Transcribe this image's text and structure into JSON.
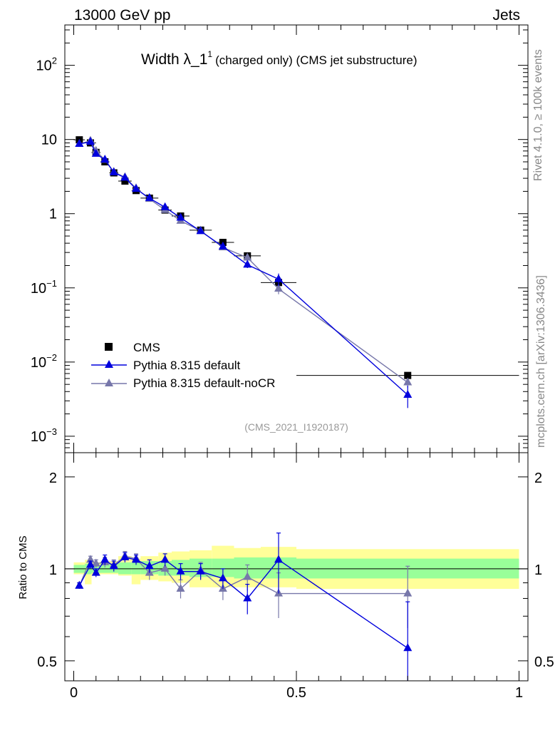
{
  "header": {
    "left": "13000 GeV pp",
    "right": "Jets"
  },
  "side_labels": {
    "rivet": "Rivet 4.1.0, ≥ 100k events",
    "mcplots": "mcplots.cern.ch [arXiv:1306.3436]"
  },
  "chart_data": [
    {
      "type": "scatter",
      "panel": "main",
      "title": "Width λ_1¹ (charged only) (CMS jet substructure)",
      "title_main": "Width λ_1",
      "title_sup": "1",
      "title_sub": "(charged only) (CMS jet substructure)",
      "analysis_label": "(CMS_2021_I1920187)",
      "yscale": "log",
      "ylim": [
        0.0006,
        350
      ],
      "xlim": [
        -0.02,
        1.02
      ],
      "ytick_labels": [
        {
          "value": 0.001,
          "base": "10",
          "exp": "−3"
        },
        {
          "value": 0.01,
          "base": "10",
          "exp": "−2"
        },
        {
          "value": 0.1,
          "base": "10",
          "exp": "−1"
        },
        {
          "value": 1,
          "base": "1",
          "exp": ""
        },
        {
          "value": 10,
          "base": "10",
          "exp": ""
        },
        {
          "value": 100,
          "base": "10",
          "exp": "2"
        }
      ],
      "legend": {
        "position": "lower-left",
        "entries": [
          "CMS",
          "Pythia 8.315 default",
          "Pythia 8.315 default-noCR"
        ]
      },
      "series": [
        {
          "name": "CMS",
          "color": "#000000",
          "marker": "square",
          "x": [
            0.0125,
            0.0375,
            0.05,
            0.07,
            0.09,
            0.115,
            0.14,
            0.17,
            0.205,
            0.24,
            0.285,
            0.335,
            0.39,
            0.46,
            0.75
          ],
          "y": [
            9.9,
            9.0,
            6.7,
            5.0,
            3.55,
            2.75,
            2.05,
            1.62,
            1.12,
            0.93,
            0.6,
            0.41,
            0.27,
            0.118,
            0.0066
          ],
          "xerr": [
            0.0125,
            0.0125,
            0.01,
            0.01,
            0.01,
            0.015,
            0.01,
            0.02,
            0.015,
            0.02,
            0.025,
            0.025,
            0.03,
            0.04,
            0.25
          ]
        },
        {
          "name": "Pythia 8.315 default",
          "color": "#0000dd",
          "marker": "triangle",
          "x": [
            0.0125,
            0.0375,
            0.05,
            0.07,
            0.09,
            0.115,
            0.14,
            0.17,
            0.205,
            0.24,
            0.285,
            0.335,
            0.39,
            0.46,
            0.75
          ],
          "y": [
            8.7,
            9.3,
            6.4,
            5.35,
            3.6,
            3.05,
            2.15,
            1.62,
            1.22,
            0.88,
            0.58,
            0.36,
            0.205,
            0.131,
            0.0036
          ],
          "yerr": [
            0.1,
            0.1,
            0.1,
            0.1,
            0.06,
            0.05,
            0.05,
            0.04,
            0.03,
            0.03,
            0.02,
            0.015,
            0.02,
            0.025,
            0.0012
          ]
        },
        {
          "name": "Pythia 8.315 default-noCR",
          "color": "#7777aa",
          "marker": "triangle",
          "x": [
            0.0125,
            0.0375,
            0.05,
            0.07,
            0.09,
            0.115,
            0.14,
            0.17,
            0.205,
            0.24,
            0.285,
            0.335,
            0.39,
            0.46,
            0.75
          ],
          "y": [
            8.7,
            9.6,
            7.0,
            5.3,
            3.65,
            3.1,
            2.2,
            1.58,
            1.12,
            0.8,
            0.59,
            0.35,
            0.255,
            0.097,
            0.0053
          ],
          "yerr": [
            0.1,
            0.1,
            0.1,
            0.1,
            0.06,
            0.05,
            0.05,
            0.04,
            0.03,
            0.03,
            0.02,
            0.015,
            0.02,
            0.015,
            0.0008
          ]
        }
      ]
    },
    {
      "type": "scatter",
      "panel": "ratio",
      "ylabel": "Ratio to CMS",
      "yscale": "log",
      "ylim": [
        0.43,
        2.4
      ],
      "xlim": [
        -0.02,
        1.02
      ],
      "yticks": [
        0.5,
        1,
        2
      ],
      "ytick_labels": [
        "0.5",
        "1",
        "2"
      ],
      "xticks": [
        0,
        0.5,
        1
      ],
      "xtick_labels": [
        "0",
        "0.5",
        "1"
      ],
      "bands": {
        "edges": [
          0,
          0.025,
          0.04,
          0.06,
          0.08,
          0.1,
          0.13,
          0.15,
          0.19,
          0.22,
          0.26,
          0.31,
          0.36,
          0.42,
          0.5,
          1.0
        ],
        "stat_lo": [
          0.97,
          0.96,
          0.97,
          0.97,
          0.97,
          0.96,
          0.96,
          0.96,
          0.95,
          0.95,
          0.94,
          0.94,
          0.93,
          0.93,
          0.93
        ],
        "stat_hi": [
          1.03,
          1.04,
          1.03,
          1.04,
          1.04,
          1.05,
          1.05,
          1.06,
          1.06,
          1.07,
          1.08,
          1.08,
          1.09,
          1.09,
          1.08
        ],
        "tot_lo": [
          0.96,
          0.89,
          0.95,
          0.96,
          0.96,
          0.95,
          0.89,
          0.92,
          0.91,
          0.9,
          0.87,
          0.87,
          0.87,
          0.87,
          0.86
        ],
        "tot_hi": [
          1.05,
          1.07,
          1.05,
          1.06,
          1.06,
          1.1,
          1.08,
          1.1,
          1.13,
          1.14,
          1.15,
          1.19,
          1.17,
          1.18,
          1.16
        ],
        "stat_color": "#99ff99",
        "total_color": "#ffff99"
      },
      "series": [
        {
          "name": "Pythia 8.315 default",
          "color": "#0000dd",
          "x": [
            0.0125,
            0.0375,
            0.05,
            0.07,
            0.09,
            0.115,
            0.14,
            0.17,
            0.205,
            0.24,
            0.285,
            0.335,
            0.39,
            0.46,
            0.75
          ],
          "y": [
            0.88,
            1.03,
            0.97,
            1.07,
            1.02,
            1.09,
            1.07,
            1.02,
            1.07,
            0.98,
            0.98,
            0.93,
            0.8,
            1.07,
            0.55
          ],
          "yerr": [
            0.02,
            0.03,
            0.03,
            0.04,
            0.04,
            0.04,
            0.04,
            0.05,
            0.05,
            0.06,
            0.06,
            0.07,
            0.09,
            0.24,
            0.23
          ]
        },
        {
          "name": "Pythia 8.315 default-noCR",
          "color": "#7777aa",
          "x": [
            0.0125,
            0.0375,
            0.05,
            0.07,
            0.09,
            0.115,
            0.14,
            0.17,
            0.205,
            0.24,
            0.285,
            0.335,
            0.39,
            0.46,
            0.75
          ],
          "y": [
            0.88,
            1.07,
            1.04,
            1.05,
            1.03,
            1.1,
            1.08,
            0.97,
            1.0,
            0.86,
            0.99,
            0.86,
            0.94,
            0.83,
            0.83
          ],
          "yerr": [
            0.02,
            0.03,
            0.03,
            0.04,
            0.04,
            0.04,
            0.04,
            0.05,
            0.05,
            0.06,
            0.06,
            0.07,
            0.09,
            0.14,
            0.19
          ]
        }
      ]
    }
  ]
}
